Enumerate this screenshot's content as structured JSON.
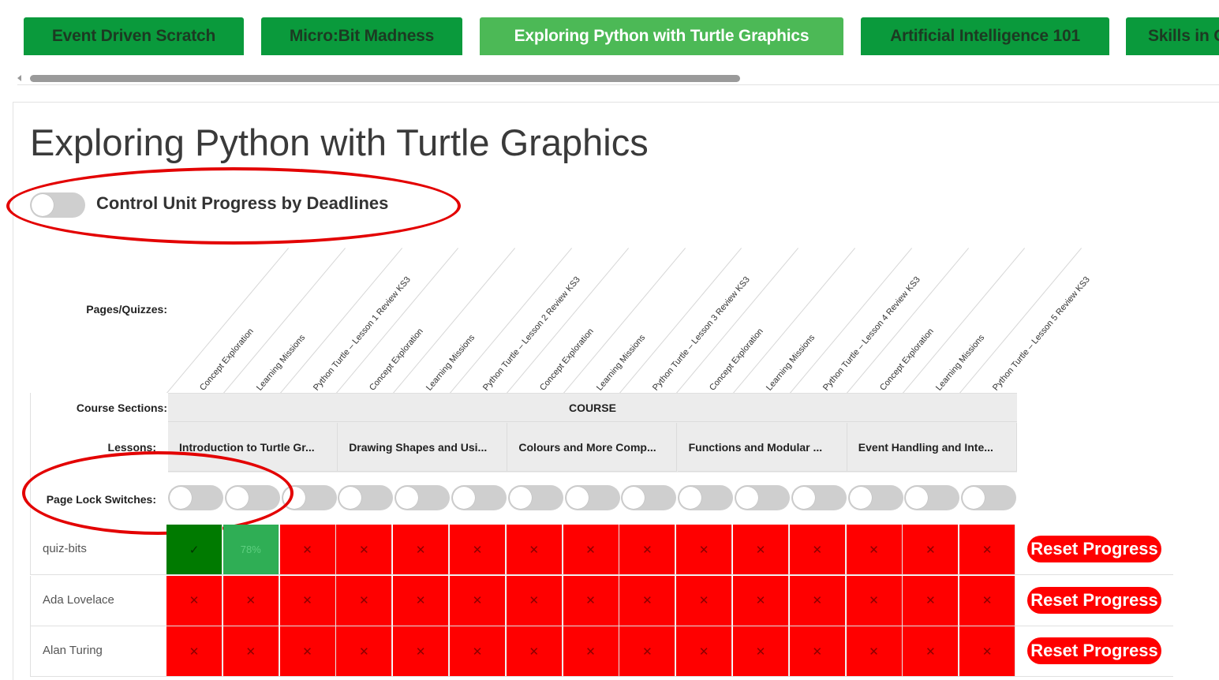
{
  "tabs": [
    {
      "label": "Event Driven Scratch",
      "active": false
    },
    {
      "label": "Micro:Bit Madness",
      "active": false
    },
    {
      "label": "Exploring Python with Turtle Graphics",
      "active": true
    },
    {
      "label": "Artificial Intelligence 101",
      "active": false
    },
    {
      "label": "Skills in C",
      "active": false
    }
  ],
  "page_title": "Exploring Python with Turtle Graphics",
  "deadline_toggle": {
    "label": "Control Unit Progress by Deadlines",
    "on": false
  },
  "labels": {
    "pages": "Pages/Quizzes:",
    "sections": "Course Sections:",
    "lessons": "Lessons:",
    "locks": "Page Lock Switches:"
  },
  "pages": [
    "Concept Exploration",
    "Learning Missions",
    "Python Turtle – Lesson 1 Review KS3",
    "Concept Exploration",
    "Learning Missions",
    "Python Turtle – Lesson 2 Review KS3",
    "Concept Exploration",
    "Learning Missions",
    "Python Turtle – Lesson 3 Review KS3",
    "Concept Exploration",
    "Learning Missions",
    "Python Turtle – Lesson 4 Review KS3",
    "Concept Exploration",
    "Learning Missions",
    "Python Turtle – Lesson 5 Review KS3"
  ],
  "section": "COURSE",
  "lessons": [
    "Introduction to Turtle Gr...",
    "Drawing Shapes and Usi...",
    "Colours and More Comp...",
    "Functions and Modular ...",
    "Event Handling and Inte..."
  ],
  "students": [
    {
      "name": "quiz-bits",
      "cells": [
        "✓",
        "78%",
        "✕",
        "✕",
        "✕",
        "✕",
        "✕",
        "✕",
        "✕",
        "✕",
        "✕",
        "✕",
        "✕",
        "✕",
        "✕"
      ],
      "states": [
        "done",
        "partial",
        "fail",
        "fail",
        "fail",
        "fail",
        "fail",
        "fail",
        "fail",
        "fail",
        "fail",
        "fail",
        "fail",
        "fail",
        "fail"
      ]
    },
    {
      "name": "Ada Lovelace",
      "cells": [
        "✕",
        "✕",
        "✕",
        "✕",
        "✕",
        "✕",
        "✕",
        "✕",
        "✕",
        "✕",
        "✕",
        "✕",
        "✕",
        "✕",
        "✕"
      ],
      "states": [
        "fail",
        "fail",
        "fail",
        "fail",
        "fail",
        "fail",
        "fail",
        "fail",
        "fail",
        "fail",
        "fail",
        "fail",
        "fail",
        "fail",
        "fail"
      ]
    },
    {
      "name": "Alan Turing",
      "cells": [
        "✕",
        "✕",
        "✕",
        "✕",
        "✕",
        "✕",
        "✕",
        "✕",
        "✕",
        "✕",
        "✕",
        "✕",
        "✕",
        "✕",
        "✕"
      ],
      "states": [
        "fail",
        "fail",
        "fail",
        "fail",
        "fail",
        "fail",
        "fail",
        "fail",
        "fail",
        "fail",
        "fail",
        "fail",
        "fail",
        "fail",
        "fail"
      ]
    }
  ],
  "reset_label": "Reset Progress",
  "colors": {
    "tab": "#0a9a3c",
    "tab_active": "#4cb956",
    "fail": "#ff0000",
    "done": "#007a00",
    "partial": "#2fae55",
    "annotation": "#e30000"
  }
}
